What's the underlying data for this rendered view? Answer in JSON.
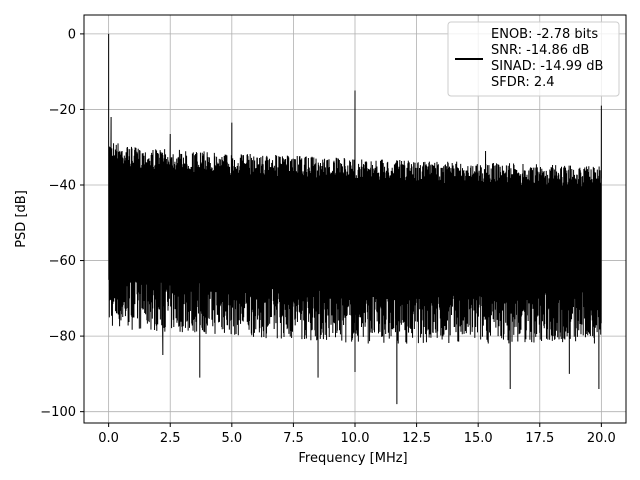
{
  "chart_data": {
    "type": "line",
    "xlabel": "Frequency [MHz]",
    "ylabel": "PSD [dB]",
    "xlim": [
      -1.0,
      21.0
    ],
    "ylim": [
      -103.0,
      5.0
    ],
    "xticks": [
      0.0,
      2.5,
      5.0,
      7.5,
      10.0,
      12.5,
      15.0,
      17.5,
      20.0
    ],
    "xtick_labels": [
      "0.0",
      "2.5",
      "5.0",
      "7.5",
      "10.0",
      "12.5",
      "15.0",
      "17.5",
      "20.0"
    ],
    "yticks": [
      0,
      -20,
      -40,
      -60,
      -80,
      -100
    ],
    "ytick_labels": [
      "0",
      "−20",
      "−40",
      "−60",
      "−80",
      "−100"
    ],
    "grid": true,
    "legend_position": "top-right",
    "legend": {
      "lines": [
        "ENOB: -2.78 bits",
        "SNR: -14.86 dB",
        "SINAD: -14.99 dB",
        "SFDR: 2.4"
      ]
    },
    "series_color": "#000000",
    "noise_floor": {
      "x_range": [
        0.0,
        20.0
      ],
      "upper_envelope_db": [
        [
          0.1,
          -28
        ],
        [
          1.0,
          -30
        ],
        [
          5.0,
          -31.5
        ],
        [
          10.0,
          -33
        ],
        [
          15.0,
          -34
        ],
        [
          20.0,
          -35
        ]
      ],
      "lower_envelope_db": [
        [
          0.1,
          -78
        ],
        [
          5.0,
          -80
        ],
        [
          10.0,
          -82
        ],
        [
          20.0,
          -82
        ]
      ]
    },
    "peaks": [
      {
        "x": 0.0,
        "y": 0.0
      },
      {
        "x": 0.1,
        "y": -22.0
      },
      {
        "x": 2.5,
        "y": -26.5
      },
      {
        "x": 5.0,
        "y": -23.5
      },
      {
        "x": 10.0,
        "y": -15.0
      },
      {
        "x": 15.3,
        "y": -31.0
      },
      {
        "x": 20.0,
        "y": -19.0
      }
    ],
    "dips": [
      {
        "x": 2.2,
        "y": -85.0
      },
      {
        "x": 3.7,
        "y": -91.0
      },
      {
        "x": 8.5,
        "y": -91.0
      },
      {
        "x": 10.0,
        "y": -89.5
      },
      {
        "x": 11.7,
        "y": -98.0
      },
      {
        "x": 16.3,
        "y": -94.0
      },
      {
        "x": 18.7,
        "y": -90.0
      },
      {
        "x": 19.9,
        "y": -94.0
      }
    ]
  }
}
